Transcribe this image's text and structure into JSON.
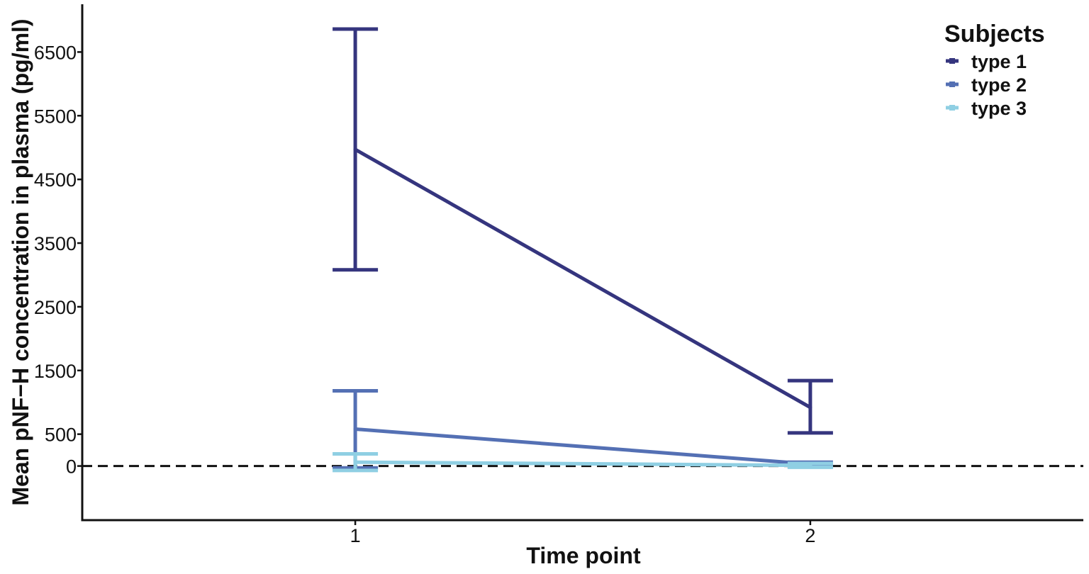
{
  "chart_data": {
    "type": "line",
    "title": "",
    "xlabel": "Time point",
    "ylabel": "Mean pNF−H concentration in plasma (pg/ml)",
    "x": [
      1,
      2
    ],
    "xticks": [
      "1",
      "2"
    ],
    "xlim": [
      0.4,
      2.6
    ],
    "ylim": [
      -850,
      7250
    ],
    "yticks": [
      "0",
      "500",
      "1500",
      "2500",
      "3500",
      "4500",
      "5500",
      "6500"
    ],
    "reference_line": {
      "y": 0,
      "style": "dashed"
    },
    "grid": false,
    "legend": {
      "title": "Subjects",
      "position": "top-right"
    },
    "series": [
      {
        "name": "type 1",
        "color": "#35357e",
        "values": [
          4970,
          920
        ],
        "error_low": [
          3080,
          520
        ],
        "error_high": [
          6860,
          1340
        ]
      },
      {
        "name": "type 2",
        "color": "#5470b4",
        "values": [
          580,
          30
        ],
        "error_low": [
          -30,
          -10
        ],
        "error_high": [
          1180,
          60
        ]
      },
      {
        "name": "type 3",
        "color": "#8fcfe3",
        "values": [
          60,
          10
        ],
        "error_low": [
          -70,
          -20
        ],
        "error_high": [
          190,
          40
        ]
      }
    ]
  }
}
